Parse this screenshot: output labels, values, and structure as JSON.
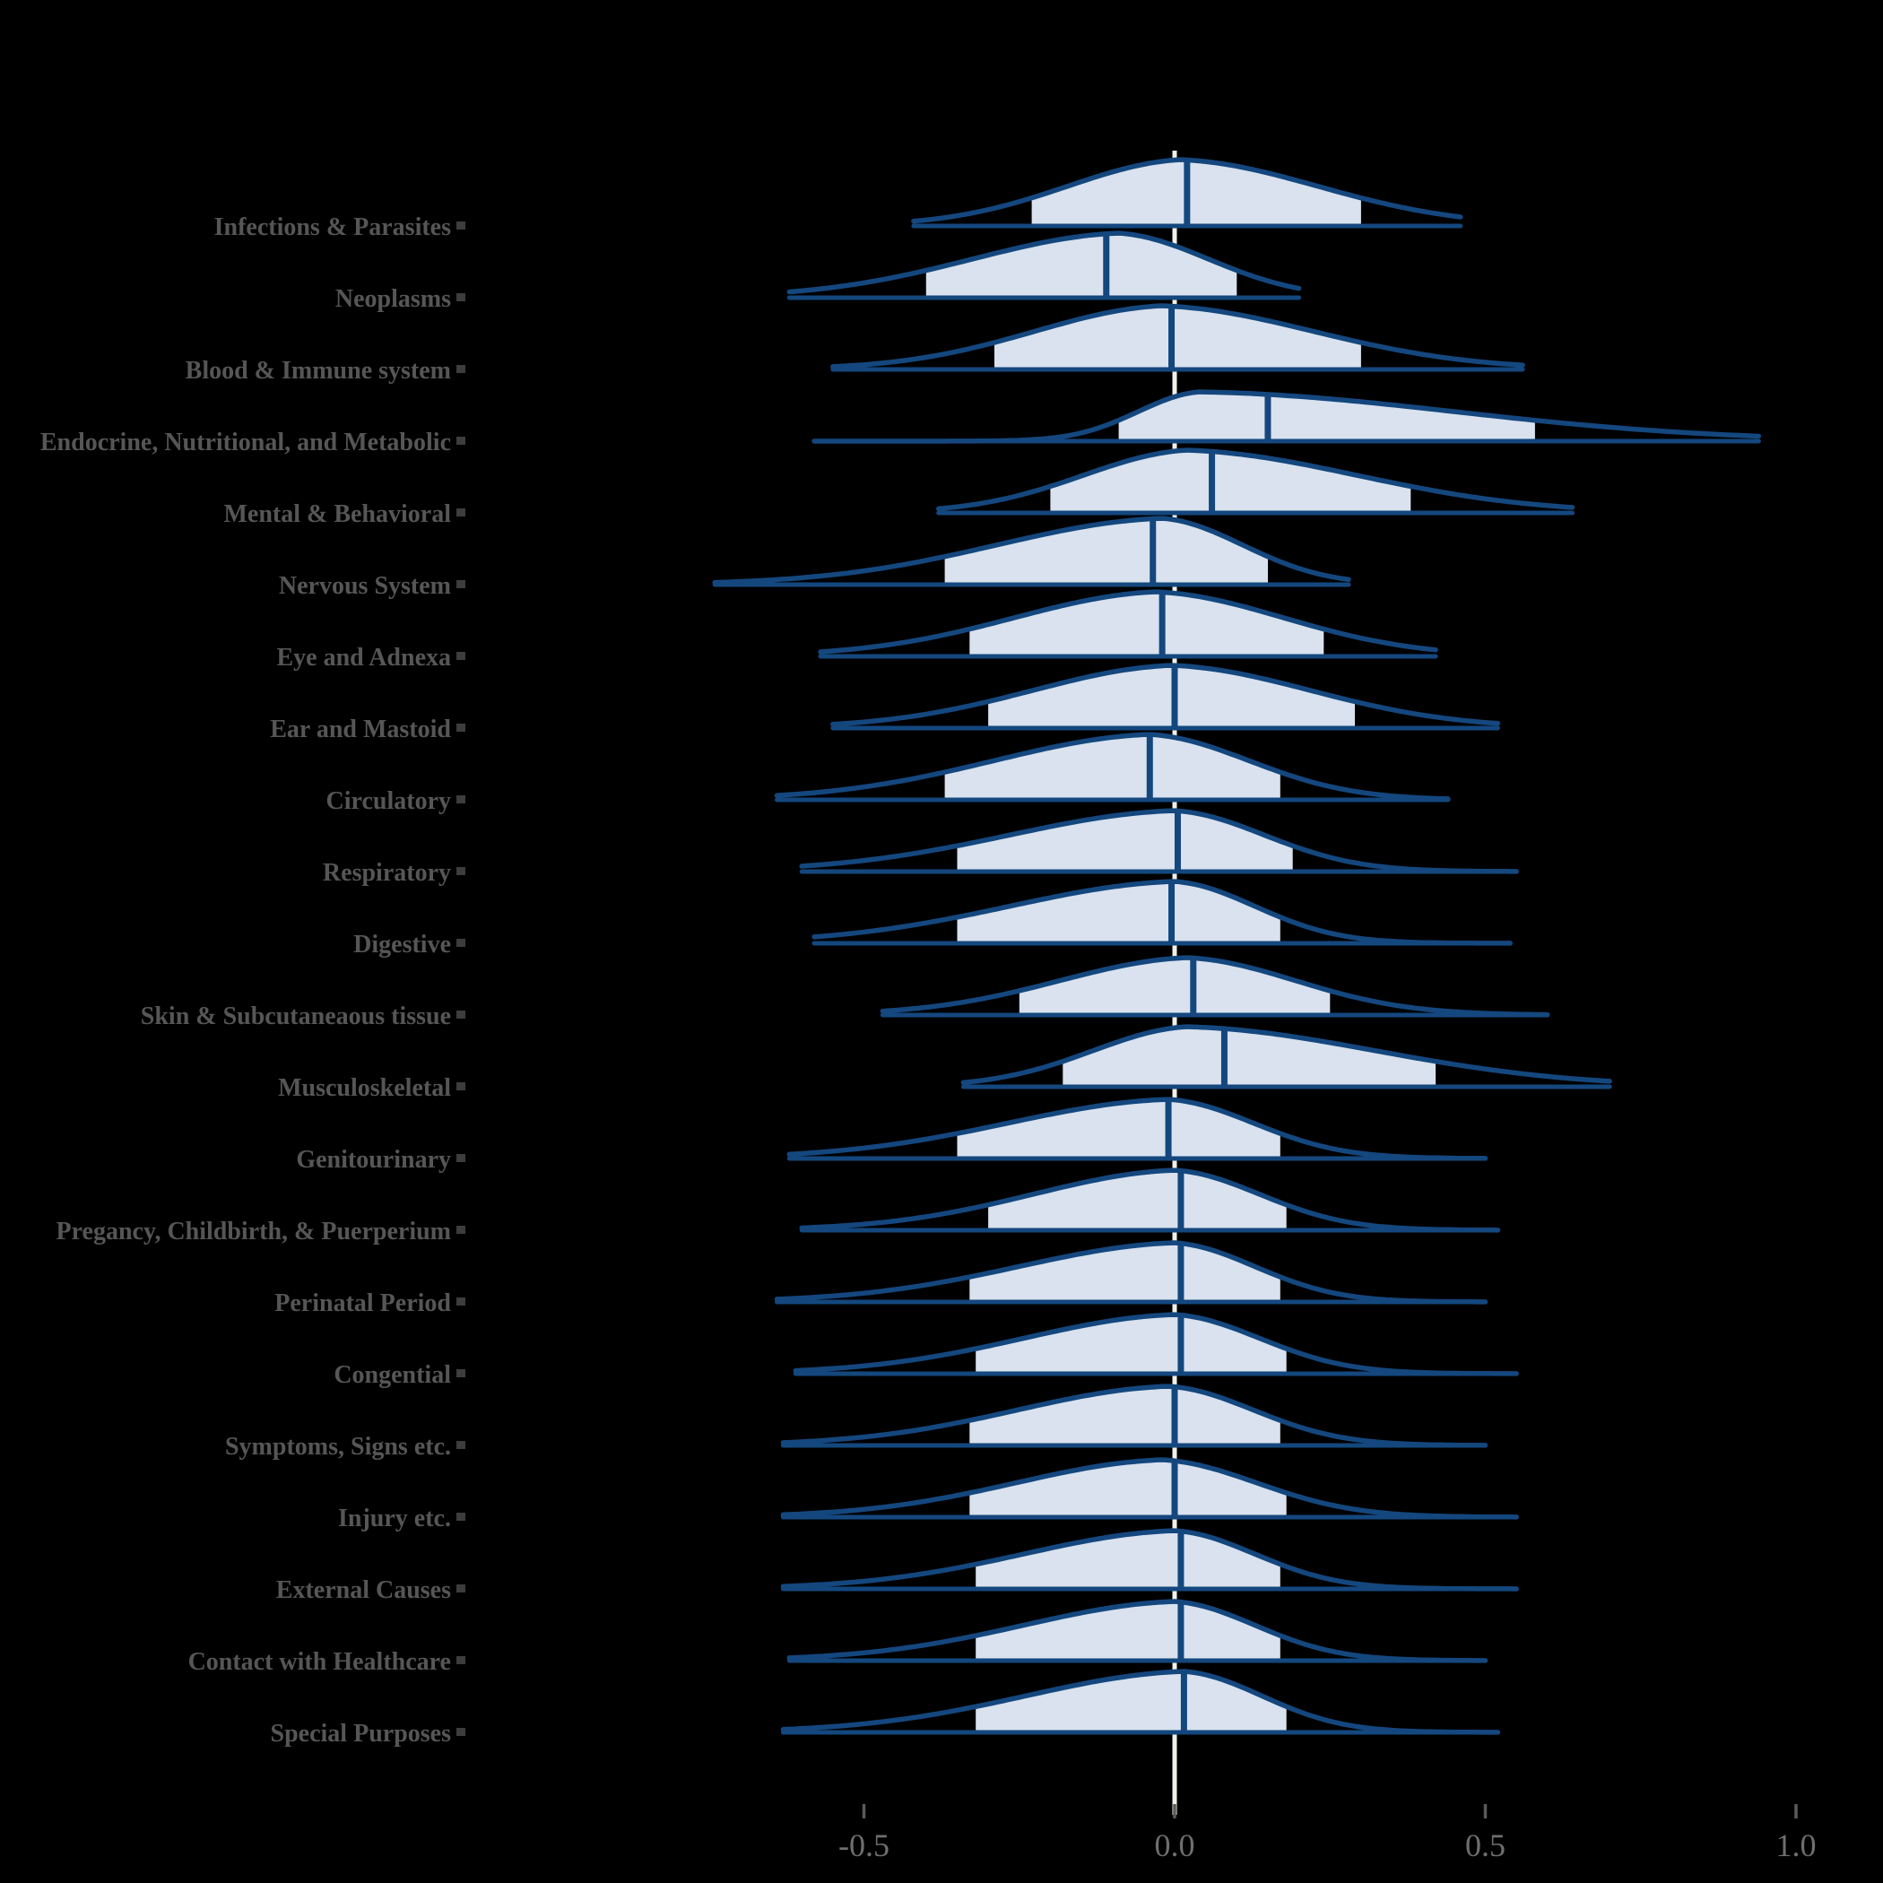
{
  "chart_data": {
    "type": "ridgeline",
    "title": "",
    "xlabel": "",
    "ylabel": "",
    "xlim": [
      -0.85,
      1.1
    ],
    "grid": "off",
    "zero_reference_line": 0.0,
    "x_ticks": [
      -0.5,
      0.0,
      0.5,
      1.0
    ],
    "x_tick_labels": [
      "-0.5",
      "0.0",
      "0.5",
      "1.0"
    ],
    "categories": [
      "Infections & Parasites",
      "Neoplasms",
      "Blood & Immune system",
      "Endocrine, Nutritional, and Metabolic",
      "Mental & Behavioral",
      "Nervous System",
      "Eye and Adnexa",
      "Ear and Mastoid",
      "Circulatory",
      "Respiratory",
      "Digestive",
      "Skin & Subcutaneaous tissue",
      "Musculoskeletal",
      "Genitourinary",
      "Pregancy, Childbirth, & Puerperium",
      "Perinatal Period",
      "Congential",
      "Symptoms, Signs etc.",
      "Injury etc.",
      "External Causes",
      "Contact with Healthcare",
      "Special Purposes"
    ],
    "series": [
      {
        "label": "Infections & Parasites",
        "median": 0.02,
        "peak": 0.01,
        "fill": [
          -0.23,
          0.3
        ],
        "tail": [
          -0.42,
          0.46
        ],
        "height": 74
      },
      {
        "label": "Neoplasms",
        "median": -0.11,
        "peak": -0.09,
        "fill": [
          -0.4,
          0.1
        ],
        "tail": [
          -0.62,
          0.2
        ],
        "height": 72
      },
      {
        "label": "Blood & Immune system",
        "median": -0.005,
        "peak": -0.02,
        "fill": [
          -0.29,
          0.3
        ],
        "tail": [
          -0.55,
          0.56
        ],
        "height": 71
      },
      {
        "label": "Endocrine, Nutritional, and Metabolic",
        "median": 0.15,
        "peak": 0.04,
        "fill": [
          -0.09,
          0.58
        ],
        "tail": [
          -0.58,
          0.94
        ],
        "height": 55
      },
      {
        "label": "Mental & Behavioral",
        "median": 0.06,
        "peak": 0.02,
        "fill": [
          -0.2,
          0.38
        ],
        "tail": [
          -0.38,
          0.64
        ],
        "height": 70
      },
      {
        "label": "Nervous System",
        "median": -0.035,
        "peak": -0.02,
        "fill": [
          -0.37,
          0.15
        ],
        "tail": [
          -0.74,
          0.28
        ],
        "height": 74
      },
      {
        "label": "Eye and Adnexa",
        "median": -0.02,
        "peak": -0.03,
        "fill": [
          -0.33,
          0.24
        ],
        "tail": [
          -0.57,
          0.42
        ],
        "height": 72
      },
      {
        "label": "Ear and Mastoid",
        "median": 0.0,
        "peak": -0.005,
        "fill": [
          -0.3,
          0.29
        ],
        "tail": [
          -0.55,
          0.52
        ],
        "height": 70
      },
      {
        "label": "Circulatory",
        "median": -0.04,
        "peak": -0.04,
        "fill": [
          -0.37,
          0.17
        ],
        "tail": [
          -0.64,
          0.44
        ],
        "height": 73
      },
      {
        "label": "Respiratory",
        "median": 0.005,
        "peak": 0.0,
        "fill": [
          -0.35,
          0.19
        ],
        "tail": [
          -0.6,
          0.55
        ],
        "height": 68
      },
      {
        "label": "Digestive",
        "median": -0.005,
        "peak": 0.0,
        "fill": [
          -0.35,
          0.17
        ],
        "tail": [
          -0.58,
          0.54
        ],
        "height": 69
      },
      {
        "label": "Skin & Subcutaneaous tissue",
        "median": 0.03,
        "peak": 0.02,
        "fill": [
          -0.25,
          0.25
        ],
        "tail": [
          -0.47,
          0.6
        ],
        "height": 64
      },
      {
        "label": "Musculoskeletal",
        "median": 0.08,
        "peak": 0.02,
        "fill": [
          -0.18,
          0.42
        ],
        "tail": [
          -0.34,
          0.7
        ],
        "height": 67
      },
      {
        "label": "Genitourinary",
        "median": -0.01,
        "peak": -0.01,
        "fill": [
          -0.35,
          0.17
        ],
        "tail": [
          -0.62,
          0.5
        ],
        "height": 66
      },
      {
        "label": "Pregancy, Childbirth, & Puerperium",
        "median": 0.01,
        "peak": 0.0,
        "fill": [
          -0.3,
          0.18
        ],
        "tail": [
          -0.6,
          0.52
        ],
        "height": 67
      },
      {
        "label": "Perinatal Period",
        "median": 0.01,
        "peak": 0.0,
        "fill": [
          -0.33,
          0.17
        ],
        "tail": [
          -0.64,
          0.5
        ],
        "height": 66
      },
      {
        "label": "Congential",
        "median": 0.01,
        "peak": 0.0,
        "fill": [
          -0.32,
          0.18
        ],
        "tail": [
          -0.61,
          0.55
        ],
        "height": 66
      },
      {
        "label": "Symptoms, Signs etc.",
        "median": 0.0,
        "peak": -0.01,
        "fill": [
          -0.33,
          0.17
        ],
        "tail": [
          -0.63,
          0.5
        ],
        "height": 66
      },
      {
        "label": "Injury etc.",
        "median": 0.0,
        "peak": -0.02,
        "fill": [
          -0.33,
          0.18
        ],
        "tail": [
          -0.63,
          0.55
        ],
        "height": 64
      },
      {
        "label": "External Causes",
        "median": 0.01,
        "peak": 0.0,
        "fill": [
          -0.32,
          0.17
        ],
        "tail": [
          -0.63,
          0.55
        ],
        "height": 65
      },
      {
        "label": "Contact with Healthcare",
        "median": 0.01,
        "peak": 0.0,
        "fill": [
          -0.32,
          0.17
        ],
        "tail": [
          -0.62,
          0.5
        ],
        "height": 66
      },
      {
        "label": "Special Purposes",
        "median": 0.015,
        "peak": 0.015,
        "fill": [
          -0.32,
          0.18
        ],
        "tail": [
          -0.63,
          0.52
        ],
        "height": 68
      }
    ]
  },
  "colors": {
    "background": "#000000",
    "ridge_stroke": "#14477E",
    "ridge_fill": "#D9E2EE",
    "median_line": "#14477E",
    "zero_line": "#F1F0E9",
    "category_label": "#565656",
    "category_tick_square": "#3D3D3D",
    "axis_tick": "#5A5A5A",
    "axis_tick_label": "#6F6F6F"
  }
}
